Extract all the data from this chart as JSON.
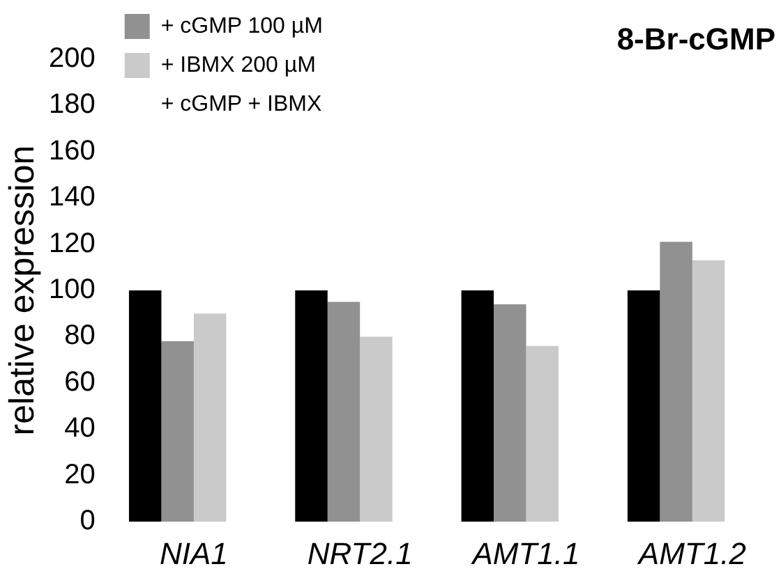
{
  "chart_data": {
    "type": "bar",
    "title": "8-Br-cGMP",
    "ylabel": "relative expression",
    "categories": [
      "NIA1",
      "NRT2.1",
      "AMT1.1",
      "AMT1.2"
    ],
    "series": [
      {
        "color": "#000000",
        "values": [
          100,
          100,
          100,
          100
        ]
      },
      {
        "name": "+ cGMP 100 µM",
        "color": "#919191",
        "values": [
          78,
          95,
          94,
          121
        ]
      },
      {
        "name": "+ IBMX 200 µM",
        "color": "#cacaca",
        "values": [
          90,
          80,
          76,
          113
        ]
      },
      {
        "name": "+ cGMP + IBMX",
        "values": [
          null,
          null,
          null,
          null
        ]
      }
    ],
    "ylim": [
      0,
      200
    ],
    "yticks": [
      0,
      20,
      40,
      60,
      80,
      100,
      120,
      140,
      160,
      180,
      200
    ],
    "grid": false,
    "legend": "top left"
  }
}
